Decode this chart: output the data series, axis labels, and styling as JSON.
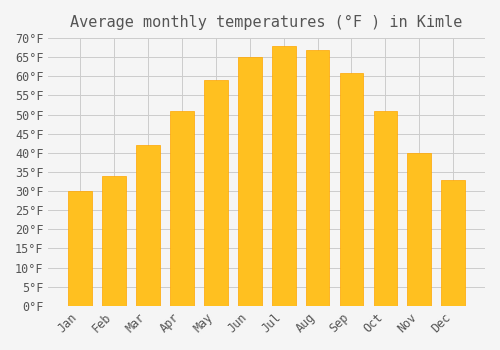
{
  "title": "Average monthly temperatures (°F ) in Kimle",
  "months": [
    "Jan",
    "Feb",
    "Mar",
    "Apr",
    "May",
    "Jun",
    "Jul",
    "Aug",
    "Sep",
    "Oct",
    "Nov",
    "Dec"
  ],
  "values": [
    30,
    34,
    42,
    51,
    59,
    65,
    68,
    67,
    61,
    51,
    40,
    33
  ],
  "bar_color": "#FFC020",
  "bar_edge_color": "#FFA500",
  "background_color": "#F5F5F5",
  "grid_color": "#CCCCCC",
  "text_color": "#555555",
  "ylim": [
    0,
    70
  ],
  "yticks": [
    0,
    5,
    10,
    15,
    20,
    25,
    30,
    35,
    40,
    45,
    50,
    55,
    60,
    65,
    70
  ],
  "title_fontsize": 11,
  "tick_fontsize": 8.5,
  "font_family": "monospace"
}
